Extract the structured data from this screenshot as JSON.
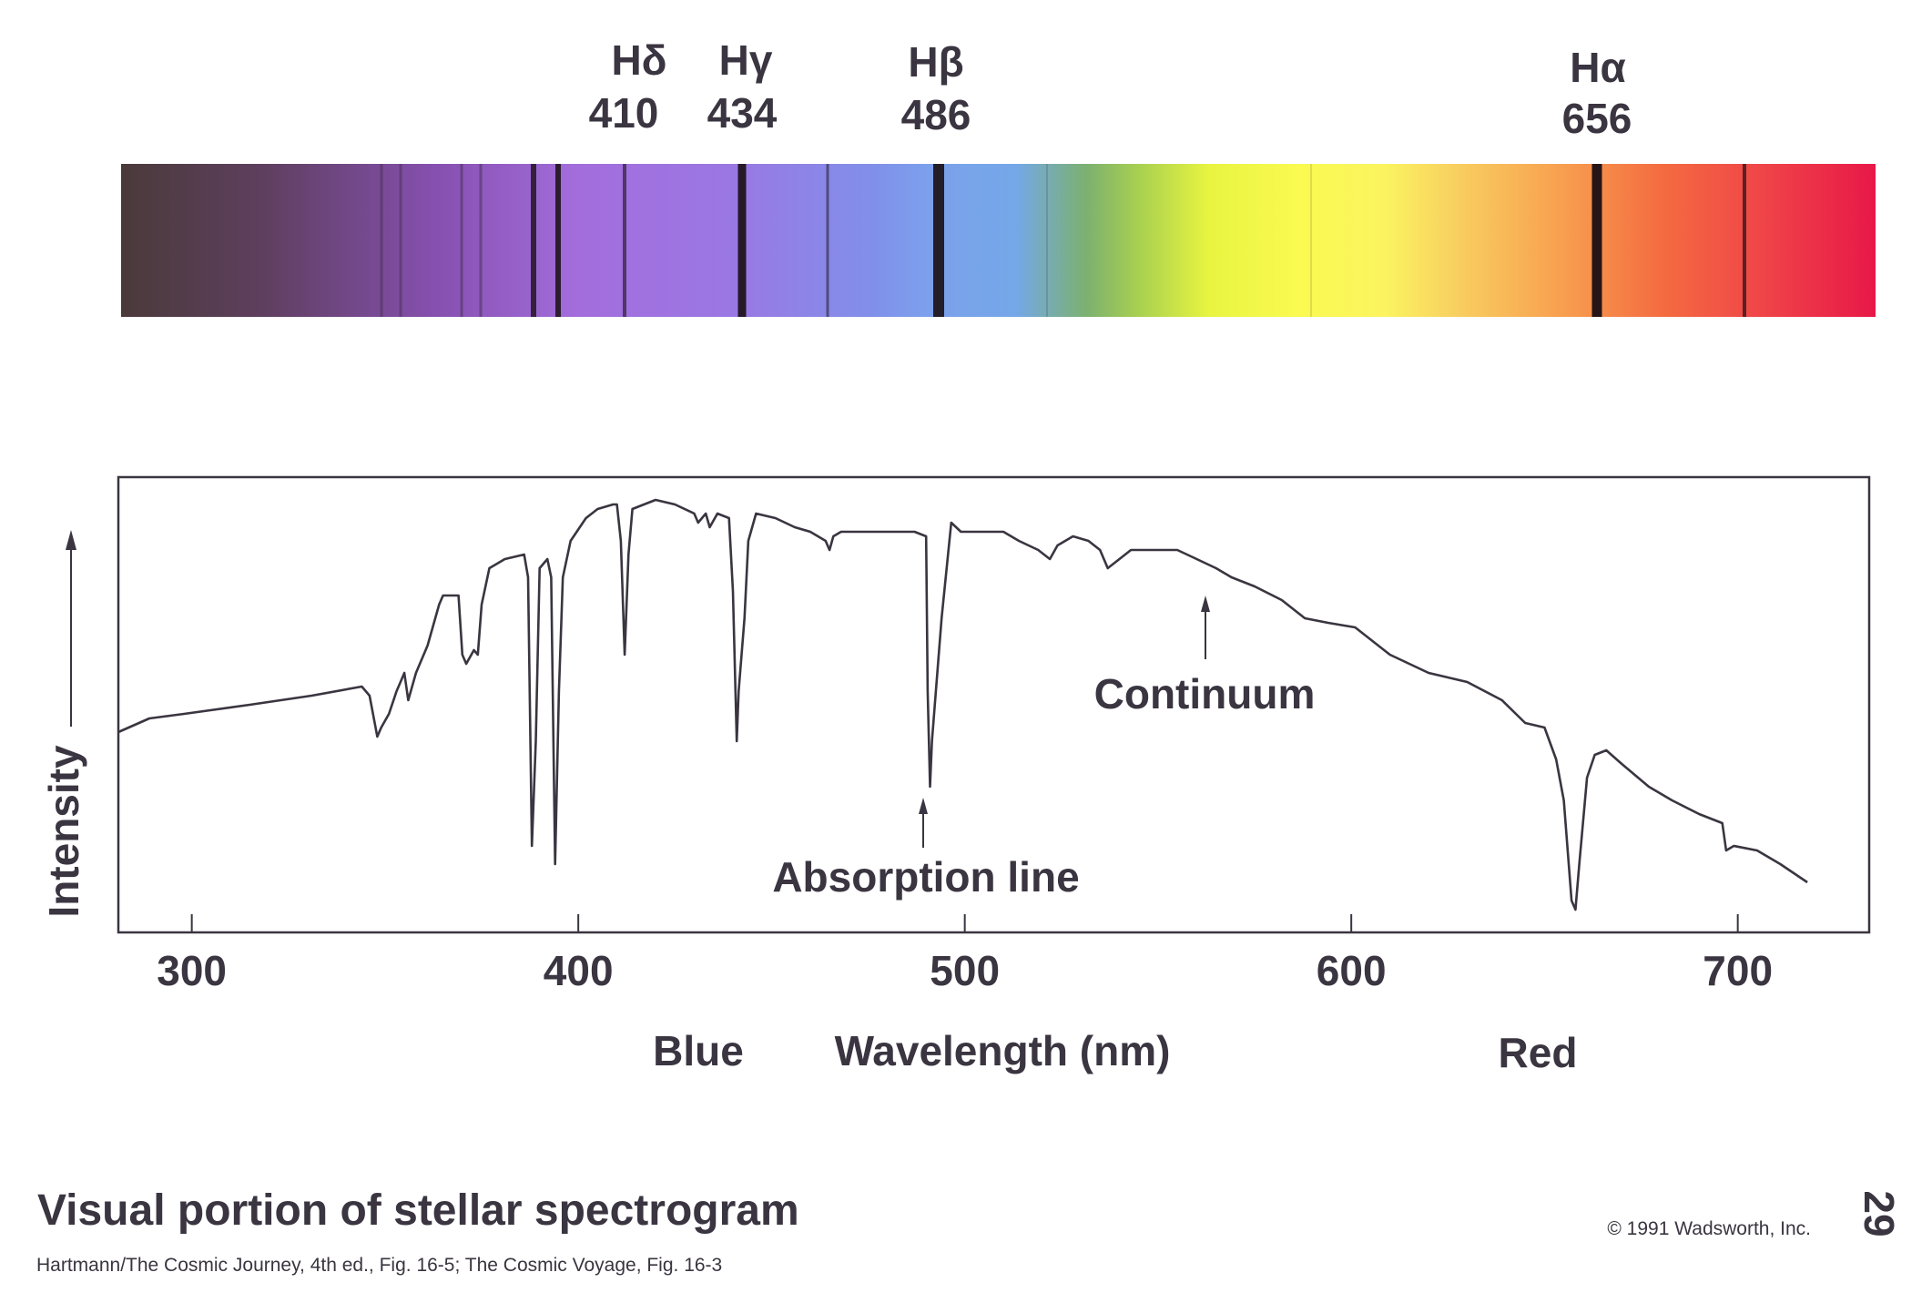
{
  "spectrum_bar": {
    "lines": [
      {
        "symbol": "Hδ",
        "wavelength": "410"
      },
      {
        "symbol": "Hγ",
        "wavelength": "434"
      },
      {
        "symbol": "Hβ",
        "wavelength": "486"
      },
      {
        "symbol": "Hα",
        "wavelength": "656"
      }
    ]
  },
  "chart_data": {
    "type": "line",
    "xlabel": "Wavelength (nm)",
    "ylabel": "Intensity",
    "xlim": [
      281,
      734
    ],
    "ylim": [
      0,
      100
    ],
    "xticks": [
      300,
      400,
      500,
      600,
      700
    ],
    "xtick_labels": [
      "300",
      "400",
      "500",
      "600",
      "700"
    ],
    "grid": false,
    "region_labels": {
      "blue": "Blue",
      "red": "Red"
    },
    "annotations": {
      "continuum": "Continuum",
      "absorption": "Absorption line"
    },
    "color": "#3a3540",
    "x": [
      281,
      289,
      298,
      315,
      331,
      344,
      346,
      348,
      349,
      351,
      353,
      354,
      355,
      356,
      358,
      361,
      364,
      365,
      369,
      370,
      371,
      373,
      374,
      375,
      377,
      381,
      386,
      387,
      388,
      389,
      390,
      392,
      393,
      394,
      395,
      396,
      398,
      402,
      405,
      409,
      410,
      411,
      412,
      413,
      414,
      417,
      420,
      425,
      430,
      431,
      433,
      434,
      436,
      439,
      440,
      441,
      441.5,
      443,
      444,
      446,
      451,
      456,
      460,
      462,
      464,
      465,
      466,
      468,
      475,
      481,
      487,
      490,
      490.4,
      491,
      491.5,
      494,
      496.5,
      499,
      503,
      510,
      514,
      519,
      522,
      524,
      528,
      532,
      535,
      537,
      540,
      543,
      546,
      551,
      555,
      560,
      565,
      569,
      575,
      582,
      588,
      594,
      601,
      610,
      620,
      630,
      639,
      645,
      650,
      653,
      655,
      657,
      658,
      659,
      661,
      663,
      666,
      670,
      677,
      683,
      690,
      696,
      697,
      699,
      705,
      711,
      718
    ],
    "y": [
      44,
      47,
      48,
      50,
      52,
      54,
      52,
      43,
      45,
      48,
      53,
      55,
      57,
      51,
      57,
      63,
      72,
      74,
      74,
      61,
      59,
      62,
      61,
      72,
      80,
      82,
      83,
      78,
      19,
      42,
      80,
      82,
      78,
      15,
      53,
      78,
      86,
      91,
      93,
      94,
      94,
      86,
      61,
      83,
      93,
      94,
      95,
      94,
      92,
      90,
      92,
      89,
      92,
      91,
      75,
      42,
      53,
      69,
      86,
      92,
      91,
      89,
      88,
      87,
      86,
      84,
      87,
      88,
      88,
      88,
      88,
      87,
      53,
      32,
      42,
      69,
      90,
      88,
      88,
      88,
      86,
      84,
      82,
      85,
      87,
      86,
      84,
      80,
      82,
      84,
      84,
      84,
      84,
      82,
      80,
      78,
      76,
      73,
      69,
      68,
      67,
      61,
      57,
      55,
      51,
      46,
      45,
      38,
      29,
      7,
      5,
      15,
      34,
      39,
      40,
      37,
      32,
      29,
      26,
      24,
      18,
      19,
      18,
      15,
      11
    ]
  },
  "caption": {
    "title": "Visual portion of stellar spectrogram",
    "credit": "Hartmann/The Cosmic Journey, 4th ed., Fig. 16-5; The Cosmic Voyage,  Fig. 16-3",
    "copyright": "© 1991 Wadsworth, Inc.",
    "page_number": "29"
  }
}
